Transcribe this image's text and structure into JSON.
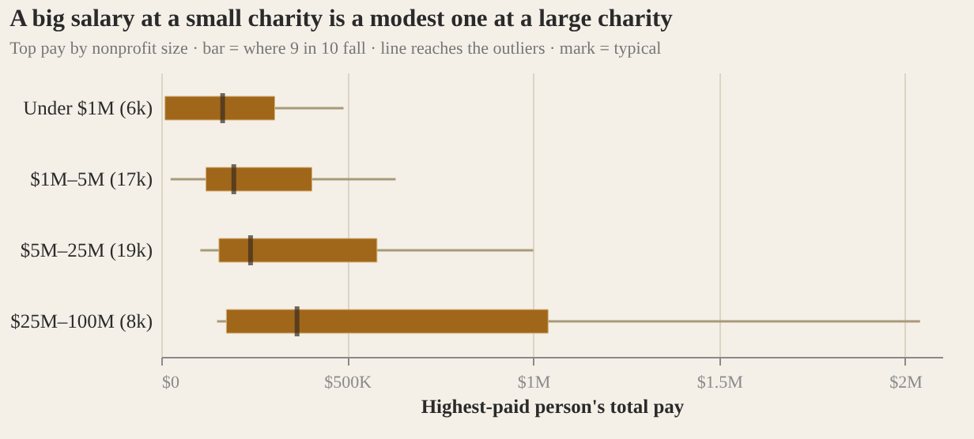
{
  "chart_data": {
    "type": "box",
    "orientation": "horizontal",
    "title": "A big salary at a small charity is a modest one at a large charity",
    "subtitle": "Top pay by nonprofit size · bar = where 9 in 10 fall · line reaches the outliers · mark = typical",
    "xlabel": "Highest-paid person's total pay",
    "categories": [
      "Under $1M (6k)",
      "$1M–5M (17k)",
      "$5M–25M (19k)",
      "$25M–100M (8k)"
    ],
    "boxes": [
      {
        "low": 10000,
        "q1": 10000,
        "median": 165000,
        "q3": 305000,
        "high": 490000
      },
      {
        "low": 25000,
        "q1": 120000,
        "median": 195000,
        "q3": 405000,
        "high": 630000
      },
      {
        "low": 105000,
        "q1": 155000,
        "median": 240000,
        "q3": 580000,
        "high": 1000000
      },
      {
        "low": 150000,
        "q1": 175000,
        "median": 365000,
        "q3": 1040000,
        "high": 2040000
      }
    ],
    "color": "#a0671b",
    "xlim": [
      0,
      2100000
    ],
    "xticks": [
      {
        "value": 0,
        "label": "$0"
      },
      {
        "value": 500000,
        "label": "$500K"
      },
      {
        "value": 1000000,
        "label": "$1M"
      },
      {
        "value": 1500000,
        "label": "$1.5M"
      },
      {
        "value": 2000000,
        "label": "$2M"
      }
    ],
    "grid": "x"
  }
}
